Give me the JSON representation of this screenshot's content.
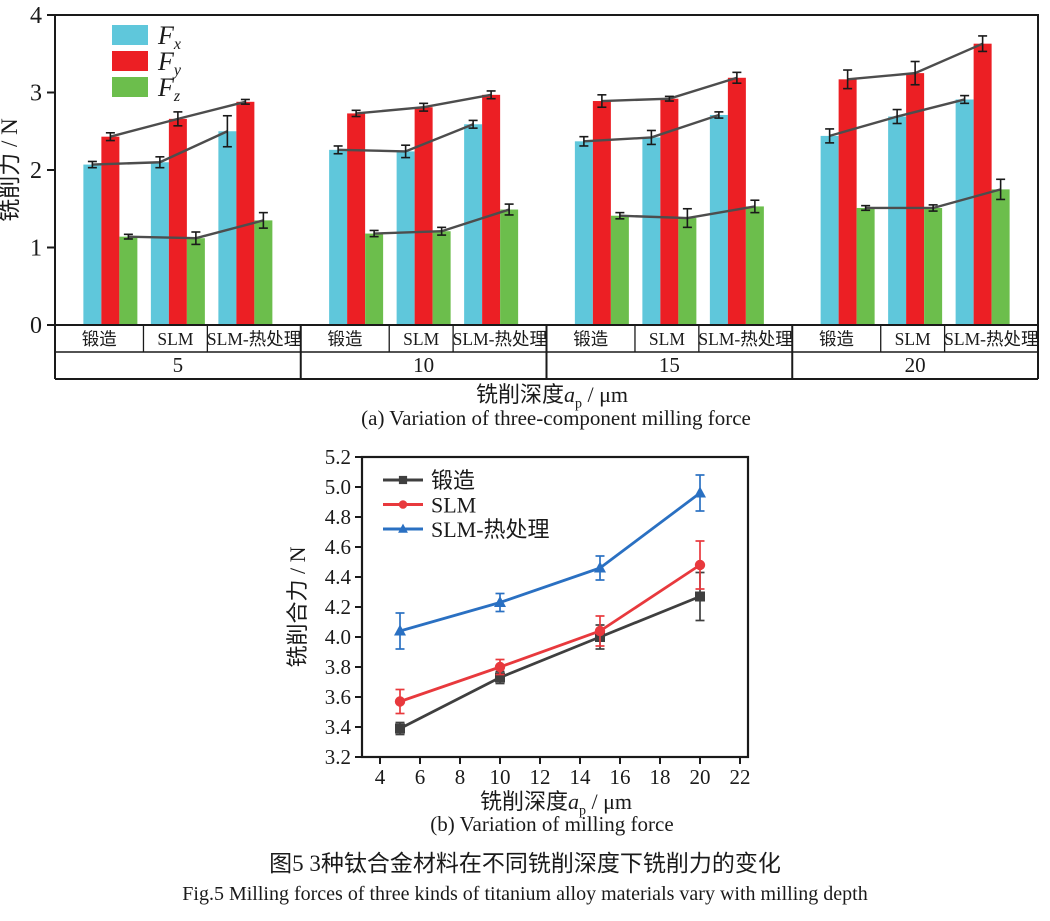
{
  "figure": {
    "caption_zh": "图5  3种钛合金材料在不同铣削深度下铣削力的变化",
    "caption_en": "Fig.5  Milling forces of three kinds of titanium alloy materials vary with milling depth"
  },
  "chart_data": [
    {
      "id": "a",
      "type": "bar",
      "caption": "(a) Variation of three-component milling force",
      "ylabel": "铣削力 / N",
      "xlabel": {
        "prefix": "铣削深度",
        "var": "a",
        "sub": "p",
        "suffix": " / μm"
      },
      "ylim": [
        0,
        4
      ],
      "yticks": [
        0,
        1,
        2,
        3,
        4
      ],
      "grid": false,
      "legend_position": "top-left-inside",
      "depths": [
        "5",
        "10",
        "15",
        "20"
      ],
      "materials": [
        "锻造",
        "SLM",
        "SLM-热处理"
      ],
      "connector_color": "#4d4d4d",
      "components": [
        {
          "name": "Fx",
          "label_base": "F",
          "label_sub": "x",
          "color": "#5fc7db",
          "values": [
            [
              2.07,
              2.1,
              2.5
            ],
            [
              2.26,
              2.24,
              2.59
            ],
            [
              2.37,
              2.42,
              2.71
            ],
            [
              2.44,
              2.69,
              2.91
            ]
          ],
          "errors": [
            [
              0.04,
              0.07,
              0.2
            ],
            [
              0.05,
              0.08,
              0.05
            ],
            [
              0.06,
              0.09,
              0.04
            ],
            [
              0.09,
              0.09,
              0.05
            ]
          ]
        },
        {
          "name": "Fy",
          "label_base": "F",
          "label_sub": "y",
          "color": "#ec1f24",
          "values": [
            [
              2.43,
              2.66,
              2.88
            ],
            [
              2.73,
              2.81,
              2.97
            ],
            [
              2.89,
              2.92,
              3.19
            ],
            [
              3.17,
              3.25,
              3.63
            ]
          ],
          "errors": [
            [
              0.05,
              0.09,
              0.03
            ],
            [
              0.04,
              0.05,
              0.05
            ],
            [
              0.08,
              0.03,
              0.07
            ],
            [
              0.12,
              0.15,
              0.1
            ]
          ]
        },
        {
          "name": "Fz",
          "label_base": "F",
          "label_sub": "z",
          "color": "#6cbe4c",
          "values": [
            [
              1.14,
              1.12,
              1.35
            ],
            [
              1.18,
              1.21,
              1.49
            ],
            [
              1.41,
              1.38,
              1.53
            ],
            [
              1.51,
              1.51,
              1.75
            ]
          ],
          "errors": [
            [
              0.03,
              0.08,
              0.1
            ],
            [
              0.04,
              0.05,
              0.07
            ],
            [
              0.04,
              0.12,
              0.08
            ],
            [
              0.03,
              0.04,
              0.13
            ]
          ]
        }
      ]
    },
    {
      "id": "b",
      "type": "line",
      "caption": "(b) Variation of milling force",
      "ylabel": "铣削合力 / N",
      "xlabel": {
        "prefix": "铣削深度",
        "var": "a",
        "sub": "p",
        "suffix": " / μm"
      },
      "x": [
        5,
        10,
        15,
        20
      ],
      "xticks": [
        4,
        6,
        8,
        10,
        12,
        14,
        16,
        18,
        20,
        22
      ],
      "xlim": [
        3.1,
        22.4
      ],
      "ylim": [
        3.2,
        5.2
      ],
      "yticks": [
        3.2,
        3.4,
        3.6,
        3.8,
        4.0,
        4.2,
        4.4,
        4.6,
        4.8,
        5.0,
        5.2
      ],
      "grid": false,
      "legend_position": "top-left-inside",
      "series": [
        {
          "name": "锻造",
          "marker": "square",
          "color": "#3f3f3f",
          "values": [
            3.39,
            3.73,
            4.0,
            4.27
          ],
          "errors": [
            0.04,
            0.04,
            0.08,
            0.16
          ]
        },
        {
          "name": "SLM",
          "marker": "circle",
          "color": "#e8393d",
          "values": [
            3.57,
            3.8,
            4.04,
            4.48
          ],
          "errors": [
            0.08,
            0.05,
            0.1,
            0.16
          ]
        },
        {
          "name": "SLM-热处理",
          "marker": "triangle",
          "color": "#2a70c2",
          "values": [
            4.04,
            4.23,
            4.46,
            4.96
          ],
          "errors": [
            0.12,
            0.06,
            0.08,
            0.12
          ]
        }
      ]
    }
  ]
}
